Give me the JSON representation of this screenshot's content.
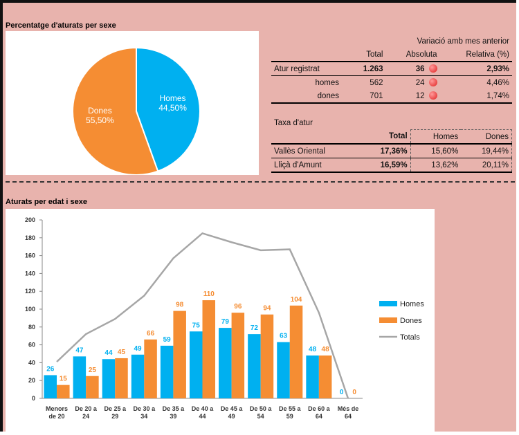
{
  "chart_data": [
    {
      "type": "pie",
      "title": "Percentatge d'aturats per sexe",
      "categories": [
        "Homes",
        "Dones"
      ],
      "values": [
        44.5,
        55.5
      ],
      "value_labels": [
        "44,50%",
        "55,50%"
      ],
      "colors": [
        "#00b0f0",
        "#f58d33"
      ]
    },
    {
      "type": "bar",
      "title": "Aturats per edat i sexe",
      "categories": [
        "Menors de 20",
        "De 20 a 24",
        "De 25 a 29",
        "De 30 a 34",
        "De 35 a 39",
        "De 40 a 44",
        "De 45 a 49",
        "De 50 a 54",
        "De 55 a 59",
        "De 60 a 64",
        "Més de 64"
      ],
      "series": [
        {
          "name": "Homes",
          "color": "#00b0f0",
          "values": [
            26,
            47,
            44,
            49,
            59,
            75,
            79,
            72,
            63,
            48,
            0
          ]
        },
        {
          "name": "Dones",
          "color": "#f58d33",
          "values": [
            15,
            25,
            45,
            66,
            98,
            110,
            96,
            94,
            104,
            48,
            0
          ]
        },
        {
          "name": "Totals",
          "type": "line",
          "color": "#a6a6a6",
          "values": [
            41,
            72,
            89,
            115,
            157,
            185,
            175,
            166,
            167,
            96,
            0
          ]
        }
      ],
      "ylim": [
        0,
        200
      ],
      "yticks": [
        0,
        20,
        40,
        60,
        80,
        100,
        120,
        140,
        160,
        180,
        200
      ],
      "legend": "right"
    }
  ],
  "tables": {
    "registre": {
      "group_header": "Variació amb mes anterior",
      "header": [
        "Total",
        "Absoluta",
        "Relativa (%)"
      ],
      "rows": [
        [
          "Atur registrat",
          "1.263",
          "36",
          "2,93%"
        ],
        [
          "homes",
          "562",
          "24",
          "4,46%"
        ],
        [
          "dones",
          "701",
          "12",
          "1,74%"
        ]
      ]
    },
    "taxa": {
      "title": "Taxa d'atur",
      "header": [
        "Total",
        "Homes",
        "Dones"
      ],
      "rows": [
        [
          "Vallès Oriental",
          "17,36%",
          "15,60%",
          "19,44%"
        ],
        [
          "Lliçà d'Amunt",
          "16,59%",
          "13,62%",
          "20,11%"
        ]
      ]
    }
  }
}
